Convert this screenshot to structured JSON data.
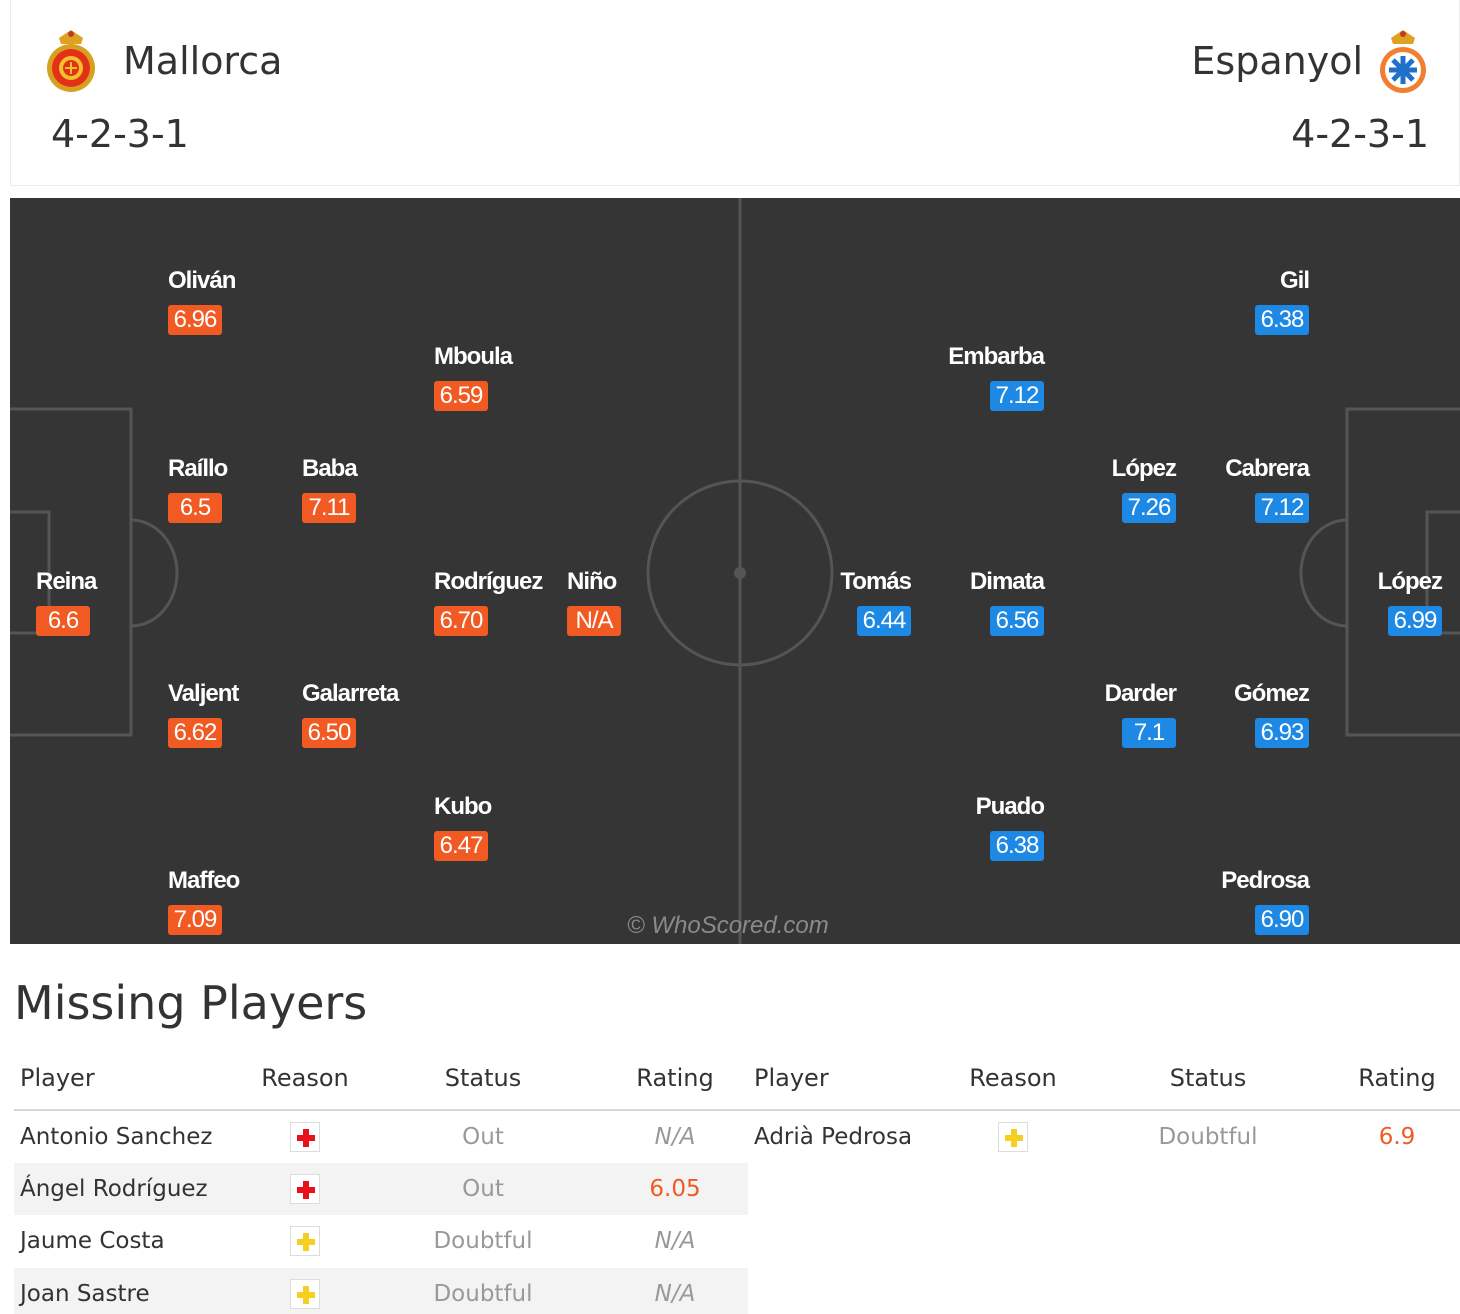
{
  "home_team": {
    "name": "Mallorca",
    "formation": "4-2-3-1",
    "crest_icon": "mallorca-crest-icon",
    "color": "#f15a22"
  },
  "away_team": {
    "name": "Espanyol",
    "formation": "4-2-3-1",
    "crest_icon": "espanyol-crest-icon",
    "color": "#1e88e5"
  },
  "pitch": {
    "watermark": "© WhoScored.com",
    "home_players": [
      {
        "name": "Oliván",
        "rating": "6.96"
      },
      {
        "name": "Mboula",
        "rating": "6.59"
      },
      {
        "name": "Raíllo",
        "rating": "6.5"
      },
      {
        "name": "Baba",
        "rating": "7.11"
      },
      {
        "name": "Reina",
        "rating": "6.6"
      },
      {
        "name": "Rodríguez",
        "rating": "6.70"
      },
      {
        "name": "Niño",
        "rating": "N/A"
      },
      {
        "name": "Valjent",
        "rating": "6.62"
      },
      {
        "name": "Galarreta",
        "rating": "6.50"
      },
      {
        "name": "Kubo",
        "rating": "6.47"
      },
      {
        "name": "Maffeo",
        "rating": "7.09"
      }
    ],
    "away_players": [
      {
        "name": "Gil",
        "rating": "6.38"
      },
      {
        "name": "Embarba",
        "rating": "7.12"
      },
      {
        "name": "López",
        "rating": "7.26"
      },
      {
        "name": "Cabrera",
        "rating": "7.12"
      },
      {
        "name": "Tomás",
        "rating": "6.44"
      },
      {
        "name": "Dimata",
        "rating": "6.56"
      },
      {
        "name": "López",
        "rating": "6.99"
      },
      {
        "name": "Darder",
        "rating": "7.1"
      },
      {
        "name": "Gómez",
        "rating": "6.93"
      },
      {
        "name": "Puado",
        "rating": "6.38"
      },
      {
        "name": "Pedrosa",
        "rating": "6.90"
      }
    ]
  },
  "missing": {
    "title": "Missing Players",
    "columns": {
      "player": "Player",
      "reason": "Reason",
      "status": "Status",
      "rating": "Rating"
    },
    "home_rows": [
      {
        "player": "Antonio Sanchez",
        "reason_icon": "injury-icon",
        "status": "Out",
        "rating": "N/A"
      },
      {
        "player": "Ángel Rodríguez",
        "reason_icon": "injury-icon",
        "status": "Out",
        "rating": "6.05"
      },
      {
        "player": "Jaume Costa",
        "reason_icon": "doubtful-icon",
        "status": "Doubtful",
        "rating": "N/A"
      },
      {
        "player": "Joan Sastre",
        "reason_icon": "doubtful-icon",
        "status": "Doubtful",
        "rating": "N/A"
      }
    ],
    "away_rows": [
      {
        "player": "Adrià Pedrosa",
        "reason_icon": "doubtful-icon",
        "status": "Doubtful",
        "rating": "6.9"
      }
    ],
    "icon_colors": {
      "injury": "#e8101a",
      "doubtful": "#f5d020"
    }
  }
}
